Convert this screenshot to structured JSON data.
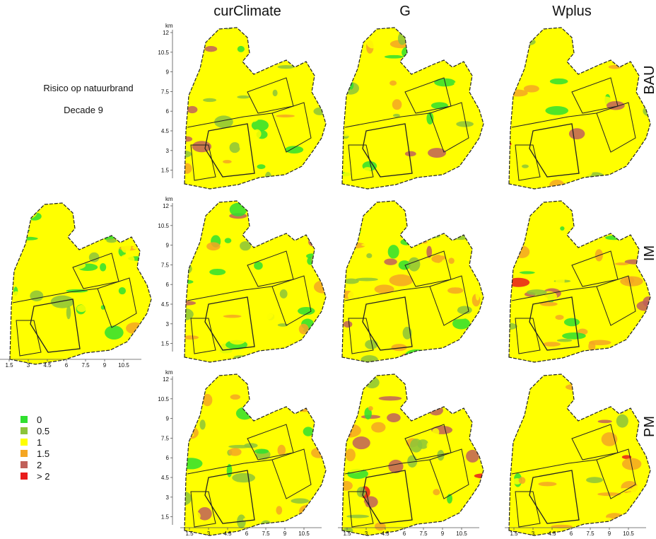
{
  "header": {
    "title": "Risico op natuurbrand",
    "subtitle": "Decade 9"
  },
  "columns": [
    "curClimate",
    "G",
    "Wplus"
  ],
  "rows": [
    "BAU",
    "IM",
    "PM"
  ],
  "legend": [
    {
      "label": "0",
      "color": "#2fe02f"
    },
    {
      "label": "0.5",
      "color": "#8cc43a"
    },
    {
      "label": "1",
      "color": "#ffff00"
    },
    {
      "label": "1.5",
      "color": "#f5a623"
    },
    {
      "label": "2",
      "color": "#c0605a"
    },
    {
      "label": "> 2",
      "color": "#e81c1c"
    }
  ],
  "y_axis": {
    "unit": "km",
    "ticks": [
      12,
      10.5,
      9,
      7.5,
      6,
      4.5,
      3,
      1.5
    ]
  },
  "x_axis": {
    "ticks": [
      1.5,
      3,
      4.5,
      6,
      7.5,
      9,
      10.5
    ]
  }
}
